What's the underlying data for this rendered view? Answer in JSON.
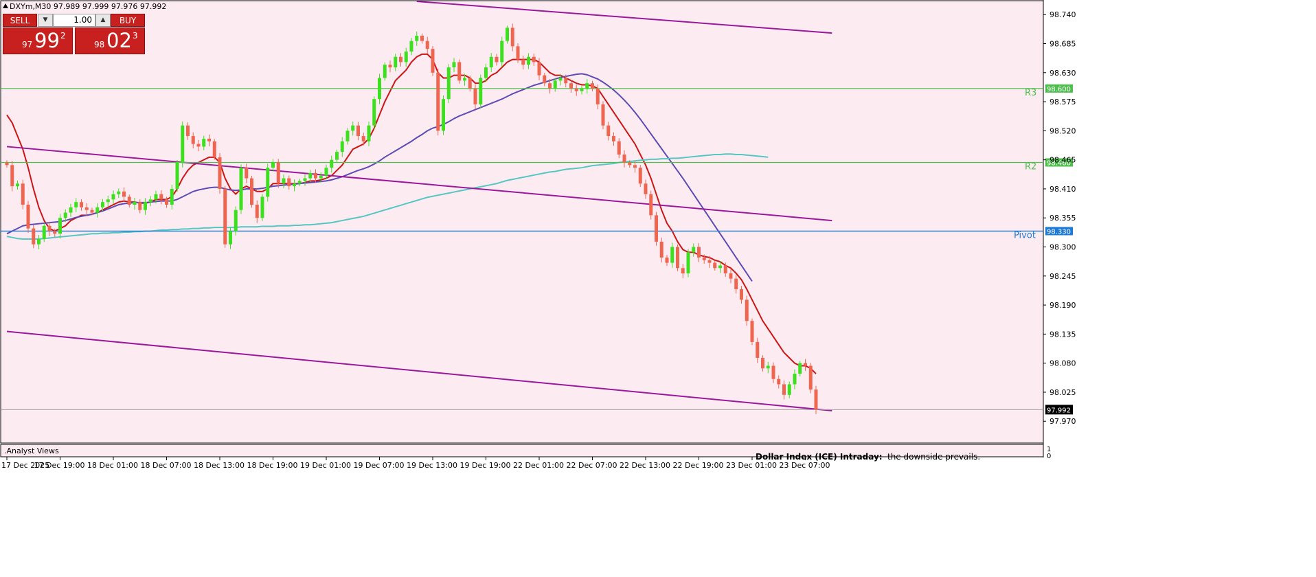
{
  "header": {
    "symbol_info": "DXYm,M30  97.989 97.999 97.976 97.992"
  },
  "trade_panel": {
    "sell_label": "SELL",
    "buy_label": "BUY",
    "volume": "1.00",
    "sell_price_prefix": "97",
    "sell_price_main": "99",
    "sell_price_sup": "2",
    "buy_price_prefix": "98",
    "buy_price_main": "02",
    "buy_price_sup": "3"
  },
  "indicator_panel": {
    "label": ".Analyst Views",
    "scale_top": "1",
    "scale_bottom": "0"
  },
  "annotation": {
    "title": "Dollar Index (ICE) Intraday:",
    "text": "the downside prevails."
  },
  "colors": {
    "background": "#fdebf2",
    "bull": "#3ce01f",
    "bear": "#ef6650",
    "ma_red": "#cc1414",
    "ma_blue": "#5c4bb5",
    "ma_cyan": "#55c7c2",
    "channel": "#9b189b",
    "resistance": "#4cbf4c",
    "pivot": "#1d7ad6"
  },
  "chart_data": {
    "type": "candlestick",
    "timeframe": "M30",
    "y_axis": {
      "min": 97.93,
      "max": 98.765,
      "ticks": [
        "98.740",
        "98.685",
        "98.630",
        "98.575",
        "98.520",
        "98.465",
        "98.410",
        "98.355",
        "98.300",
        "98.245",
        "98.190",
        "98.135",
        "98.080",
        "98.025",
        "97.970"
      ]
    },
    "x_labels": [
      {
        "i": 0,
        "label": "17 Dec 2025"
      },
      {
        "i": 10,
        "label": "17 Dec 19:00"
      },
      {
        "i": 20,
        "label": "18 Dec 01:00"
      },
      {
        "i": 30,
        "label": "18 Dec 07:00"
      },
      {
        "i": 40,
        "label": "18 Dec 13:00"
      },
      {
        "i": 50,
        "label": "18 Dec 19:00"
      },
      {
        "i": 60,
        "label": "19 Dec 01:00"
      },
      {
        "i": 70,
        "label": "19 Dec 07:00"
      },
      {
        "i": 80,
        "label": "19 Dec 13:00"
      },
      {
        "i": 90,
        "label": "19 Dec 19:00"
      },
      {
        "i": 100,
        "label": "22 Dec 01:00"
      },
      {
        "i": 110,
        "label": "22 Dec 07:00"
      },
      {
        "i": 120,
        "label": "22 Dec 13:00"
      },
      {
        "i": 130,
        "label": "22 Dec 19:00"
      },
      {
        "i": 140,
        "label": "23 Dec 01:00"
      },
      {
        "i": 150,
        "label": "23 Dec 07:00"
      }
    ],
    "closes": [
      98.455,
      98.415,
      98.42,
      98.38,
      98.335,
      98.305,
      98.315,
      98.34,
      98.33,
      98.325,
      98.355,
      98.365,
      98.375,
      98.385,
      98.375,
      98.37,
      98.365,
      98.375,
      98.385,
      98.39,
      98.4,
      98.405,
      98.395,
      98.38,
      98.385,
      98.37,
      98.385,
      98.39,
      98.4,
      98.39,
      98.38,
      98.41,
      98.46,
      98.53,
      98.51,
      98.495,
      98.49,
      98.505,
      98.5,
      98.47,
      98.41,
      98.305,
      98.33,
      98.37,
      98.45,
      98.43,
      98.38,
      98.355,
      98.395,
      98.45,
      98.46,
      98.42,
      98.43,
      98.415,
      98.42,
      98.425,
      98.43,
      98.44,
      98.43,
      98.435,
      98.45,
      98.465,
      98.48,
      98.5,
      98.52,
      98.53,
      98.51,
      98.5,
      98.53,
      98.58,
      98.62,
      98.645,
      98.64,
      98.66,
      98.65,
      98.67,
      98.69,
      98.7,
      98.69,
      98.675,
      98.63,
      98.52,
      98.58,
      98.64,
      98.65,
      98.615,
      98.62,
      98.6,
      98.57,
      98.62,
      98.64,
      98.66,
      98.65,
      98.69,
      98.715,
      98.68,
      98.655,
      98.645,
      98.66,
      98.65,
      98.625,
      98.61,
      98.6,
      98.615,
      98.62,
      98.61,
      98.6,
      98.595,
      98.6,
      98.61,
      98.6,
      98.57,
      98.53,
      98.51,
      98.5,
      98.475,
      98.46,
      98.455,
      98.45,
      98.42,
      98.4,
      98.36,
      98.31,
      98.28,
      98.27,
      98.3,
      98.26,
      98.25,
      98.29,
      98.3,
      98.28,
      98.275,
      98.27,
      98.26,
      98.265,
      98.25,
      98.24,
      98.22,
      98.2,
      98.16,
      98.12,
      98.09,
      98.07,
      98.075,
      98.05,
      98.04,
      98.02,
      98.04,
      98.06,
      98.08,
      98.075,
      98.03,
      97.992
    ],
    "series": [
      {
        "name": "",
        "color": "#cc1414",
        "values": [
          98.55,
          98.535,
          98.51,
          98.485,
          98.45,
          98.41,
          98.375,
          98.35,
          98.335,
          98.33,
          98.335,
          98.34,
          98.35,
          98.355,
          98.36,
          98.36,
          98.362,
          98.365,
          98.37,
          98.375,
          98.38,
          98.385,
          98.387,
          98.385,
          98.385,
          98.383,
          98.383,
          98.385,
          98.39,
          98.39,
          98.39,
          98.395,
          98.41,
          98.43,
          98.445,
          98.455,
          98.46,
          98.465,
          98.47,
          98.47,
          98.46,
          98.43,
          98.41,
          98.4,
          98.41,
          98.415,
          98.41,
          98.405,
          98.405,
          98.41,
          98.42,
          98.42,
          98.42,
          98.42,
          98.42,
          98.42,
          98.422,
          98.425,
          98.425,
          98.427,
          98.43,
          98.435,
          98.445,
          98.455,
          98.47,
          98.485,
          98.49,
          98.495,
          98.505,
          98.525,
          98.55,
          98.575,
          98.595,
          98.615,
          98.625,
          98.635,
          98.65,
          98.66,
          98.665,
          98.665,
          98.655,
          98.63,
          98.62,
          98.62,
          98.625,
          98.625,
          98.625,
          98.62,
          98.61,
          98.61,
          98.615,
          98.625,
          98.63,
          98.64,
          98.65,
          98.655,
          98.655,
          98.655,
          98.655,
          98.655,
          98.65,
          98.64,
          98.63,
          98.625,
          98.625,
          98.62,
          98.615,
          98.61,
          98.607,
          98.607,
          98.605,
          98.6,
          98.585,
          98.57,
          98.555,
          98.54,
          98.525,
          98.51,
          98.495,
          98.475,
          98.455,
          98.43,
          98.4,
          98.37,
          98.345,
          98.33,
          98.31,
          98.295,
          98.29,
          98.29,
          98.285,
          98.282,
          98.28,
          98.275,
          98.272,
          98.265,
          98.26,
          98.25,
          98.238,
          98.22,
          98.2,
          98.18,
          98.16,
          98.145,
          98.13,
          98.115,
          98.1,
          98.09,
          98.08,
          98.075,
          98.075,
          98.07,
          98.06
        ]
      },
      {
        "name": "",
        "color": "#5c4bb5",
        "values": [
          98.325,
          98.33,
          98.335,
          98.34,
          98.342,
          98.343,
          98.344,
          98.345,
          98.346,
          98.347,
          98.348,
          98.35,
          98.353,
          98.356,
          98.358,
          98.36,
          98.362,
          98.365,
          98.368,
          98.372,
          98.376,
          98.38,
          98.382,
          98.383,
          98.384,
          98.384,
          98.384,
          98.385,
          98.386,
          98.387,
          98.387,
          98.387,
          98.39,
          98.395,
          98.4,
          98.405,
          98.408,
          98.41,
          98.412,
          98.413,
          98.413,
          98.41,
          98.408,
          98.407,
          98.408,
          98.41,
          98.41,
          98.41,
          98.411,
          98.413,
          98.415,
          98.416,
          98.417,
          98.418,
          98.419,
          98.42,
          98.421,
          98.422,
          98.423,
          98.424,
          98.425,
          98.427,
          98.43,
          98.433,
          98.437,
          98.441,
          98.445,
          98.448,
          98.452,
          98.457,
          98.463,
          98.47,
          98.476,
          98.482,
          98.488,
          98.494,
          98.5,
          98.507,
          98.513,
          98.52,
          98.525,
          98.528,
          98.532,
          98.537,
          98.543,
          98.548,
          98.552,
          98.556,
          98.56,
          98.564,
          98.568,
          98.572,
          98.576,
          98.58,
          98.585,
          98.59,
          98.594,
          98.598,
          98.602,
          98.606,
          98.609,
          98.612,
          98.615,
          98.618,
          98.621,
          98.623,
          98.625,
          98.627,
          98.628,
          98.626,
          98.622,
          98.618,
          98.612,
          98.605,
          98.597,
          98.588,
          98.578,
          98.567,
          98.555,
          98.542,
          98.528,
          98.514,
          98.5,
          98.486,
          98.472,
          98.458,
          98.444,
          98.43,
          98.415,
          98.4,
          98.385,
          98.37,
          98.355,
          98.34,
          98.325,
          98.31,
          98.295,
          98.28,
          98.265,
          98.25,
          98.235
        ]
      },
      {
        "name": "",
        "color": "#55c7c2",
        "values": [
          98.32,
          98.318,
          98.316,
          98.315,
          98.315,
          98.315,
          98.315,
          98.316,
          98.317,
          98.318,
          98.319,
          98.32,
          98.321,
          98.322,
          98.323,
          98.324,
          98.325,
          98.325,
          98.326,
          98.326,
          98.327,
          98.327,
          98.328,
          98.328,
          98.329,
          98.329,
          98.33,
          98.33,
          98.331,
          98.332,
          98.332,
          98.333,
          98.333,
          98.334,
          98.334,
          98.335,
          98.335,
          98.336,
          98.336,
          98.337,
          98.337,
          98.337,
          98.337,
          98.337,
          98.338,
          98.338,
          98.338,
          98.338,
          98.339,
          98.339,
          98.339,
          98.34,
          98.34,
          98.34,
          98.341,
          98.341,
          98.342,
          98.342,
          98.343,
          98.344,
          98.345,
          98.346,
          98.348,
          98.35,
          98.352,
          98.354,
          98.356,
          98.358,
          98.361,
          98.364,
          98.367,
          98.37,
          98.373,
          98.376,
          98.379,
          98.382,
          98.385,
          98.388,
          98.391,
          98.394,
          98.396,
          98.398,
          98.4,
          98.402,
          98.404,
          98.406,
          98.408,
          98.41,
          98.412,
          98.414,
          98.416,
          98.418,
          98.42,
          98.423,
          98.426,
          98.428,
          98.43,
          98.432,
          98.434,
          98.436,
          98.438,
          98.44,
          98.442,
          98.443,
          98.445,
          98.447,
          98.448,
          98.449,
          98.45,
          98.452,
          98.454,
          98.455,
          98.456,
          98.457,
          98.458,
          98.46,
          98.461,
          98.462,
          98.463,
          98.464,
          98.465,
          98.466,
          98.466,
          98.467,
          98.467,
          98.468,
          98.468,
          98.469,
          98.47,
          98.471,
          98.472,
          98.473,
          98.474,
          98.475,
          98.475,
          98.476,
          98.476,
          98.475,
          98.475,
          98.474,
          98.473,
          98.472,
          98.471,
          98.47
        ]
      }
    ],
    "channel_lines": [
      {
        "from": {
          "i": 0,
          "y": 98.49
        },
        "to": {
          "i": 155,
          "y": 98.35
        }
      },
      {
        "from": {
          "i": 77,
          "y": 98.765
        },
        "to": {
          "i": 155,
          "y": 98.705
        }
      },
      {
        "from": {
          "i": 0,
          "y": 98.14
        },
        "to": {
          "i": 155,
          "y": 97.99
        }
      }
    ],
    "levels": [
      {
        "name": "R3",
        "value": 98.6,
        "label": "98.600"
      },
      {
        "name": "R2",
        "value": 98.46,
        "label": "98.460"
      },
      {
        "name": "Pivot",
        "value": 98.33,
        "label": "98.330"
      }
    ],
    "current_price": {
      "value": 97.992,
      "label": "97.992"
    }
  }
}
